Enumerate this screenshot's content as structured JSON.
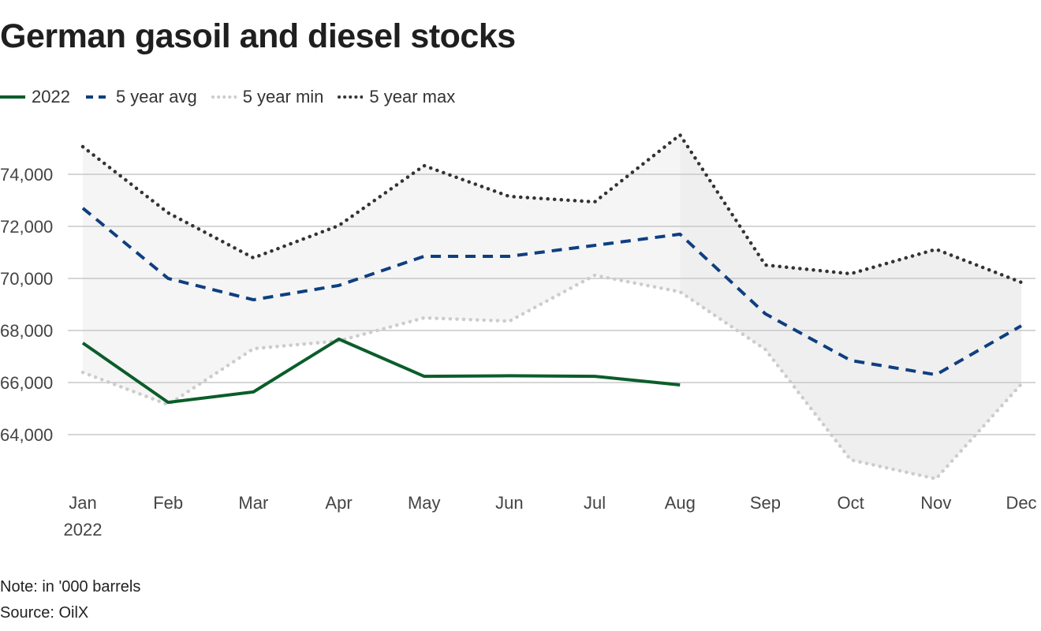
{
  "title": "German gasoil and diesel stocks",
  "note": "Note: in '000 barrels",
  "source": "Source: OilX",
  "colors": {
    "series_2022": "#0b5d2a",
    "avg": "#0e3f80",
    "min": "#cccccc",
    "max": "#333333",
    "band": "#efefef",
    "band_light": "#f5f5f5",
    "grid": "#c8c8c8"
  },
  "chart_data": {
    "type": "line",
    "title": "German gasoil and diesel stocks",
    "xlabel": "",
    "ylabel": "",
    "x": [
      "Jan",
      "Feb",
      "Mar",
      "Apr",
      "May",
      "Jun",
      "Jul",
      "Aug",
      "Sep",
      "Oct",
      "Nov",
      "Dec"
    ],
    "x_sublabel": {
      "Jan": "2022"
    },
    "yticks": [
      64000,
      66000,
      68000,
      70000,
      72000,
      74000
    ],
    "ytick_labels": [
      "64,000",
      "66,000",
      "68,000",
      "70,000",
      "72,000",
      "74,000"
    ],
    "ylim": [
      62000,
      76000
    ],
    "grid": true,
    "legend_position": "top-left",
    "series": [
      {
        "name": "2022",
        "style": "solid",
        "values": [
          67520,
          65240,
          65640,
          67670,
          66240,
          66260,
          66240,
          65910,
          null,
          null,
          null,
          null
        ]
      },
      {
        "name": "5 year avg",
        "style": "dashed",
        "values": [
          72700,
          70000,
          69180,
          69730,
          70850,
          70850,
          71270,
          71700,
          68640,
          66850,
          66300,
          68180
        ]
      },
      {
        "name": "5 year min",
        "style": "dotted-light",
        "values": [
          66390,
          65150,
          67300,
          67600,
          68485,
          68360,
          70120,
          69485,
          67270,
          63030,
          62300,
          65940
        ]
      },
      {
        "name": "5 year max",
        "style": "dotted-dark",
        "values": [
          75060,
          72520,
          70790,
          72030,
          74333,
          73150,
          72940,
          75515,
          70515,
          70180,
          71120,
          69850
        ]
      }
    ],
    "band": {
      "between": [
        "5 year min",
        "5 year max"
      ]
    }
  }
}
